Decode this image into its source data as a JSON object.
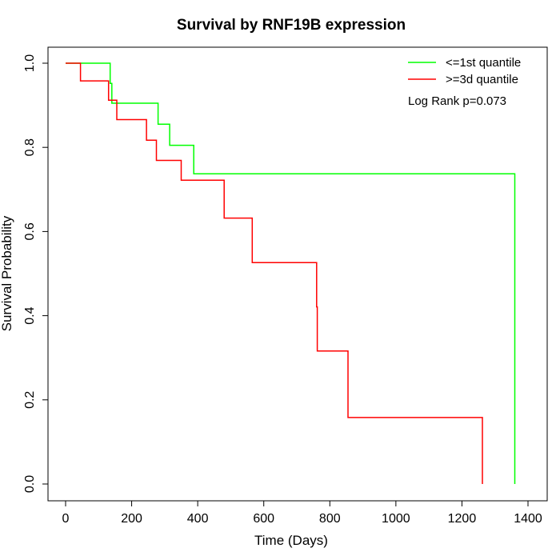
{
  "chart_data": {
    "type": "line",
    "step": true,
    "title": "Survival by RNF19B expression",
    "xlabel": "Time (Days)",
    "ylabel": "Survival Probability",
    "xlim": [
      0,
      1400
    ],
    "ylim": [
      0,
      1.0
    ],
    "x_ticks": [
      "0",
      "200",
      "400",
      "600",
      "800",
      "1000",
      "1200",
      "1400"
    ],
    "y_ticks": [
      "0.0",
      "0.2",
      "0.4",
      "0.6",
      "0.8",
      "1.0"
    ],
    "grid": false,
    "legend_position": "top-right",
    "annotation": "Log Rank p=0.073",
    "series": [
      {
        "name": "<=1st quantile",
        "color": "#00ff00",
        "points": [
          [
            0,
            1.0
          ],
          [
            135,
            1.0
          ],
          [
            135,
            0.952
          ],
          [
            140,
            0.952
          ],
          [
            140,
            0.905
          ],
          [
            280,
            0.905
          ],
          [
            280,
            0.855
          ],
          [
            315,
            0.855
          ],
          [
            315,
            0.805
          ],
          [
            388,
            0.805
          ],
          [
            388,
            0.737
          ],
          [
            1360,
            0.737
          ],
          [
            1360,
            0.0
          ]
        ]
      },
      {
        "name": ">=3d quantile",
        "color": "#ff0000",
        "points": [
          [
            0,
            1.0
          ],
          [
            45,
            1.0
          ],
          [
            45,
            0.958
          ],
          [
            130,
            0.958
          ],
          [
            130,
            0.912
          ],
          [
            155,
            0.912
          ],
          [
            155,
            0.866
          ],
          [
            245,
            0.866
          ],
          [
            245,
            0.817
          ],
          [
            275,
            0.817
          ],
          [
            275,
            0.769
          ],
          [
            350,
            0.769
          ],
          [
            350,
            0.722
          ],
          [
            480,
            0.722
          ],
          [
            480,
            0.632
          ],
          [
            565,
            0.632
          ],
          [
            565,
            0.526
          ],
          [
            760,
            0.526
          ],
          [
            760,
            0.421
          ],
          [
            762,
            0.421
          ],
          [
            762,
            0.316
          ],
          [
            855,
            0.316
          ],
          [
            855,
            0.158
          ],
          [
            1262,
            0.158
          ],
          [
            1262,
            0.0
          ]
        ]
      }
    ]
  }
}
